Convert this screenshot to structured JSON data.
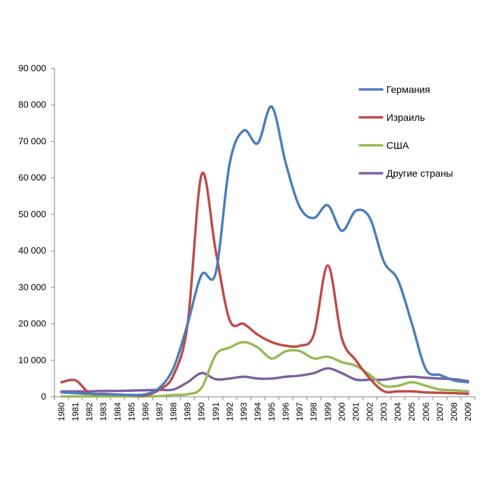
{
  "chart_data": {
    "type": "line",
    "title": "",
    "xlabel": "",
    "ylabel": "",
    "ylim": [
      0,
      90000
    ],
    "y_ticks": [
      0,
      10000,
      20000,
      30000,
      40000,
      50000,
      60000,
      70000,
      80000,
      90000
    ],
    "y_tick_labels": [
      "0",
      "10 000",
      "20 000",
      "30 000",
      "40 000",
      "50 000",
      "60 000",
      "70 000",
      "80 000",
      "90 000"
    ],
    "x": [
      "1980",
      "1981",
      "1982",
      "1983",
      "1984",
      "1985",
      "1986",
      "1987",
      "1988",
      "1989",
      "1990",
      "1991",
      "1992",
      "1993",
      "1994",
      "1995",
      "1996",
      "1997",
      "1998",
      "1999",
      "2000",
      "2001",
      "2002",
      "2003",
      "2004",
      "2005",
      "2006",
      "2007",
      "2008",
      "2009"
    ],
    "legend_position": "top-right",
    "grid": false,
    "series": [
      {
        "name": "Германия",
        "color": "#4a7ebb",
        "values": [
          1200,
          1000,
          800,
          700,
          600,
          500,
          700,
          2500,
          8000,
          20000,
          33500,
          34000,
          64000,
          73000,
          69500,
          79500,
          64000,
          52000,
          49000,
          52500,
          45500,
          51000,
          49000,
          37000,
          32000,
          20000,
          7500,
          6000,
          4500,
          4000
        ]
      },
      {
        "name": "Израиль",
        "color": "#be4b48",
        "values": [
          4000,
          4500,
          1000,
          800,
          600,
          500,
          400,
          2000,
          6000,
          20000,
          61000,
          40000,
          21000,
          20000,
          17000,
          15000,
          14000,
          14000,
          17000,
          36000,
          16000,
          10000,
          5000,
          1500,
          1500,
          1500,
          1200,
          1100,
          1000,
          800
        ]
      },
      {
        "name": "США",
        "color": "#98b954",
        "values": [
          100,
          100,
          100,
          100,
          100,
          100,
          100,
          200,
          500,
          700,
          2500,
          11500,
          13500,
          15000,
          13500,
          10500,
          12500,
          12500,
          10500,
          11000,
          9500,
          8500,
          6000,
          3000,
          3000,
          4000,
          3000,
          2000,
          1800,
          1500
        ]
      },
      {
        "name": "Другие страны",
        "color": "#7d60a0",
        "values": [
          1500,
          1500,
          1500,
          1600,
          1600,
          1700,
          1800,
          1900,
          2000,
          4000,
          6500,
          4800,
          5000,
          5500,
          5000,
          5000,
          5500,
          5800,
          6500,
          7800,
          6500,
          4700,
          4700,
          4700,
          5200,
          5500,
          5200,
          5000,
          4800,
          4300
        ]
      }
    ]
  }
}
